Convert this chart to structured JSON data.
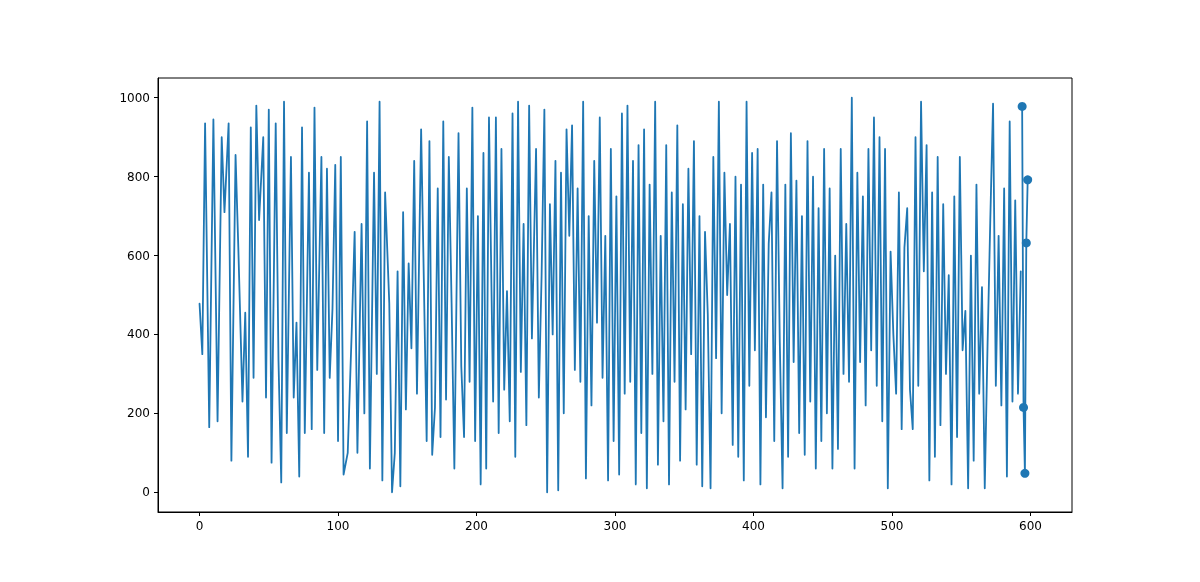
{
  "chart_data": {
    "type": "line",
    "xlim": [
      -30,
      630
    ],
    "xticks": [
      0,
      100,
      200,
      300,
      400,
      500,
      600
    ],
    "ylim": [
      -50,
      1050
    ],
    "yticks": [
      0,
      200,
      400,
      600,
      800,
      1000
    ],
    "grid": false,
    "line_style": "solid",
    "series": [
      {
        "color": "#1f77b4",
        "marker": "none",
        "x": [
          0,
          2,
          4,
          7,
          10,
          13,
          16,
          18,
          21,
          23,
          26,
          28,
          31,
          33,
          35,
          37,
          39,
          41,
          43,
          46,
          48,
          50,
          52,
          55,
          57,
          59,
          61,
          63,
          66,
          68,
          70,
          72,
          74,
          76,
          79,
          81,
          83,
          85,
          88,
          90,
          92,
          94,
          96,
          98,
          100,
          102,
          104,
          107,
          110,
          112,
          114,
          117,
          119,
          121,
          123,
          126,
          128,
          130,
          132,
          134,
          137,
          139,
          141,
          143,
          145,
          147,
          149,
          151,
          153,
          155,
          157,
          160,
          162,
          164,
          166,
          168,
          170,
          172,
          174,
          176,
          178,
          180,
          182,
          184,
          187,
          189,
          191,
          193,
          195,
          197,
          199,
          201,
          203,
          205,
          207,
          209,
          212,
          214,
          216,
          218,
          220,
          222,
          224,
          226,
          228,
          230,
          232,
          234,
          236,
          238,
          240,
          243,
          245,
          247,
          249,
          251,
          253,
          255,
          257,
          259,
          261,
          263,
          265,
          267,
          269,
          271,
          273,
          275,
          277,
          279,
          281,
          283,
          285,
          287,
          289,
          291,
          293,
          295,
          297,
          299,
          301,
          303,
          305,
          307,
          309,
          311,
          313,
          315,
          317,
          319,
          321,
          323,
          325,
          327,
          329,
          331,
          333,
          335,
          337,
          339,
          341,
          343,
          345,
          347,
          349,
          351,
          353,
          355,
          357,
          359,
          361,
          363,
          365,
          367,
          369,
          371,
          373,
          375,
          377,
          379,
          381,
          383,
          385,
          387,
          389,
          391,
          393,
          395,
          397,
          399,
          401,
          403,
          405,
          407,
          409,
          411,
          413,
          415,
          417,
          419,
          421,
          423,
          425,
          427,
          429,
          431,
          433,
          435,
          437,
          439,
          441,
          443,
          445,
          447,
          449,
          451,
          453,
          455,
          457,
          459,
          461,
          463,
          465,
          467,
          469,
          471,
          473,
          475,
          477,
          479,
          481,
          483,
          485,
          487,
          489,
          491,
          493,
          495,
          497,
          499,
          501,
          503,
          505,
          507,
          509,
          511,
          513,
          515,
          517,
          519,
          521,
          523,
          525,
          527,
          529,
          531,
          533,
          535,
          537,
          539,
          541,
          543,
          545,
          547,
          549,
          551,
          553,
          555,
          557,
          559,
          561,
          563,
          565,
          567,
          569,
          571,
          573,
          575,
          577,
          579,
          581,
          583,
          585,
          587,
          589,
          591,
          593
        ],
        "values": [
          478,
          350,
          935,
          165,
          945,
          180,
          900,
          710,
          935,
          80,
          855,
          620,
          230,
          455,
          90,
          925,
          290,
          980,
          690,
          900,
          240,
          970,
          75,
          935,
          335,
          25,
          990,
          150,
          850,
          240,
          430,
          40,
          925,
          150,
          810,
          160,
          975,
          310,
          850,
          150,
          820,
          290,
          465,
          830,
          130,
          850,
          45,
          100,
          420,
          660,
          100,
          680,
          200,
          940,
          60,
          810,
          300,
          990,
          30,
          760,
          480,
          0,
          100,
          560,
          15,
          710,
          210,
          580,
          365,
          840,
          250,
          920,
          530,
          130,
          890,
          95,
          215,
          770,
          140,
          940,
          235,
          850,
          480,
          60,
          910,
          320,
          140,
          770,
          280,
          975,
          130,
          700,
          20,
          860,
          60,
          950,
          230,
          950,
          150,
          870,
          260,
          510,
          180,
          960,
          90,
          990,
          305,
          680,
          170,
          980,
          390,
          870,
          240,
          550,
          970,
          0,
          730,
          400,
          840,
          5,
          810,
          200,
          920,
          650,
          930,
          310,
          770,
          280,
          990,
          35,
          700,
          220,
          840,
          430,
          950,
          290,
          650,
          30,
          870,
          130,
          750,
          45,
          960,
          250,
          980,
          280,
          840,
          20,
          880,
          150,
          920,
          10,
          780,
          300,
          990,
          70,
          650,
          180,
          880,
          20,
          760,
          280,
          930,
          80,
          730,
          210,
          820,
          350,
          890,
          70,
          700,
          15,
          660,
          450,
          10,
          850,
          340,
          990,
          200,
          810,
          500,
          680,
          120,
          800,
          90,
          780,
          30,
          990,
          270,
          860,
          360,
          870,
          20,
          780,
          190,
          630,
          760,
          130,
          890,
          380,
          10,
          780,
          90,
          910,
          330,
          790,
          150,
          700,
          95,
          890,
          230,
          800,
          60,
          720,
          130,
          870,
          200,
          770,
          60,
          600,
          110,
          870,
          300,
          680,
          280,
          1000,
          60,
          810,
          330,
          750,
          220,
          870,
          360,
          950,
          270,
          900,
          180,
          870,
          10,
          610,
          400,
          250,
          760,
          160,
          620,
          720,
          260,
          160,
          900,
          270,
          990,
          560,
          880,
          30,
          760,
          90,
          850,
          170,
          730,
          300,
          550,
          20,
          750,
          140,
          850,
          360,
          460,
          10,
          600,
          80,
          780,
          250,
          520,
          10,
          370,
          690,
          985,
          270,
          650,
          220,
          770,
          40,
          940,
          230,
          740,
          250,
          560
        ]
      },
      {
        "color": "#1f77b4",
        "marker": "circle",
        "x": [
          594,
          595,
          596,
          597,
          598
        ],
        "values": [
          978,
          215,
          48,
          632,
          792
        ]
      }
    ]
  }
}
